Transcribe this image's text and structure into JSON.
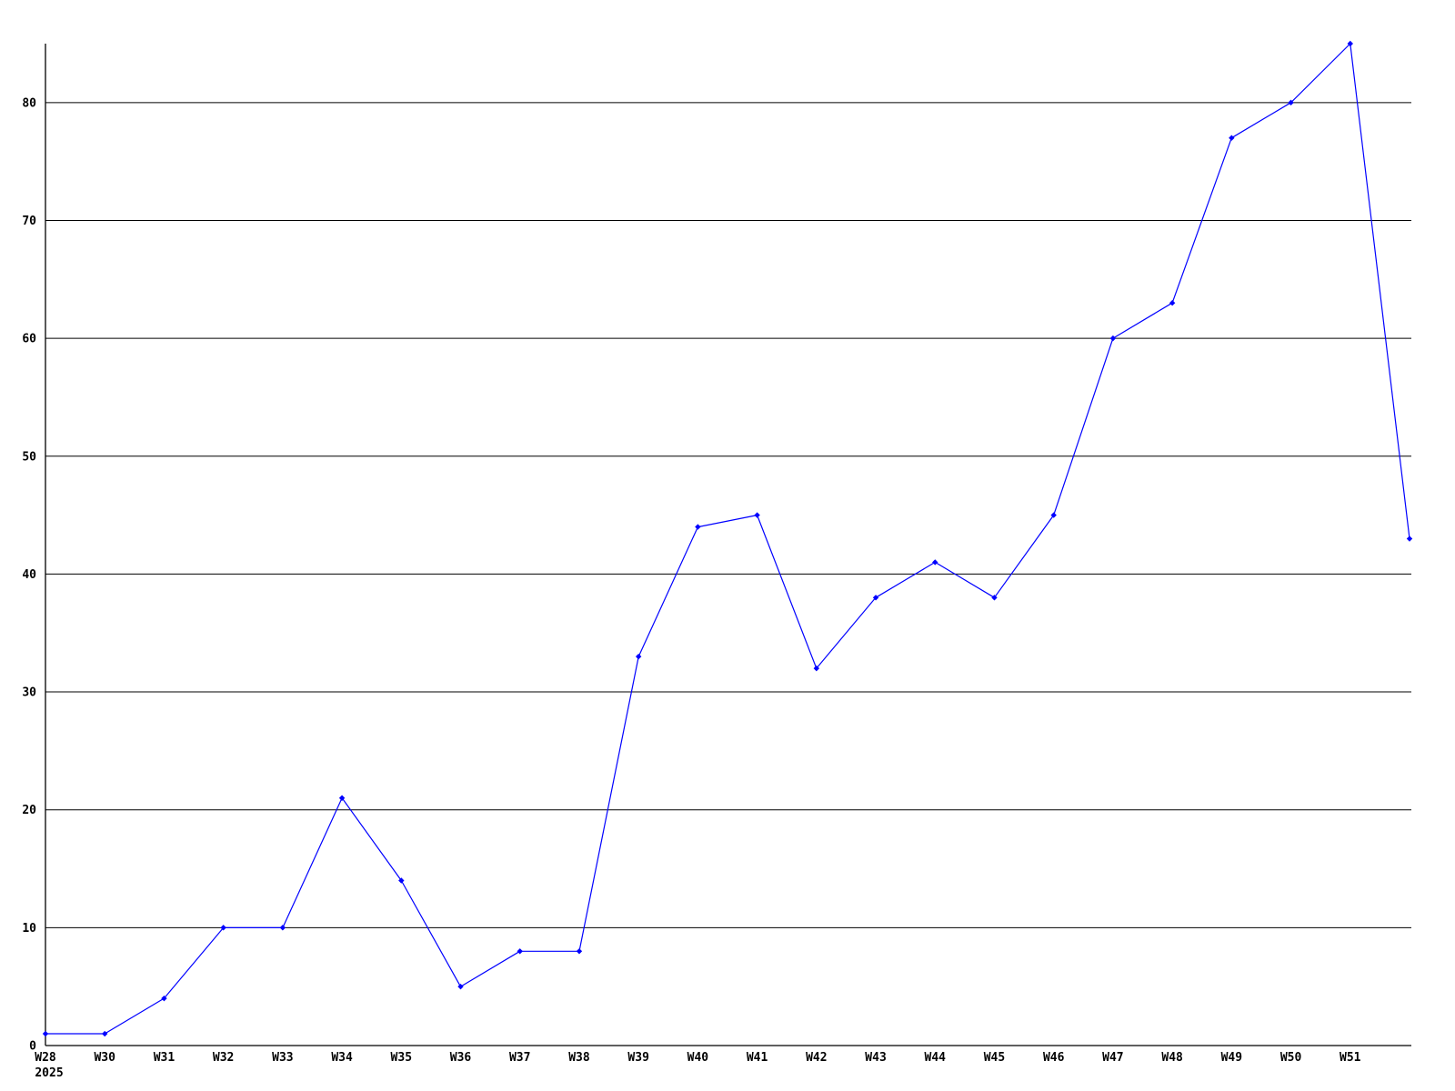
{
  "chart_data": {
    "type": "line",
    "title": "",
    "categories": [
      "W28",
      "W30",
      "W31",
      "W32",
      "W33",
      "W34",
      "W35",
      "W36",
      "W37",
      "W38",
      "W39",
      "W40",
      "W41",
      "W42",
      "W43",
      "W44",
      "W45",
      "W46",
      "W47",
      "W48",
      "W49",
      "W50",
      "W51",
      ""
    ],
    "values": [
      1,
      1,
      4,
      10,
      10,
      21,
      14,
      5,
      8,
      8,
      33,
      44,
      45,
      32,
      38,
      41,
      38,
      45,
      60,
      63,
      77,
      80,
      85,
      43
    ],
    "year_label": "2025",
    "xlabel": "",
    "ylabel": "",
    "yticks": [
      0,
      10,
      20,
      30,
      40,
      50,
      60,
      70,
      80
    ],
    "ylim": [
      0,
      85
    ],
    "grid": true,
    "legend_position": "none",
    "marker": "diamond",
    "line_color": "#0000ff",
    "axis_color": "#000000",
    "background_color": "#ffffff"
  }
}
